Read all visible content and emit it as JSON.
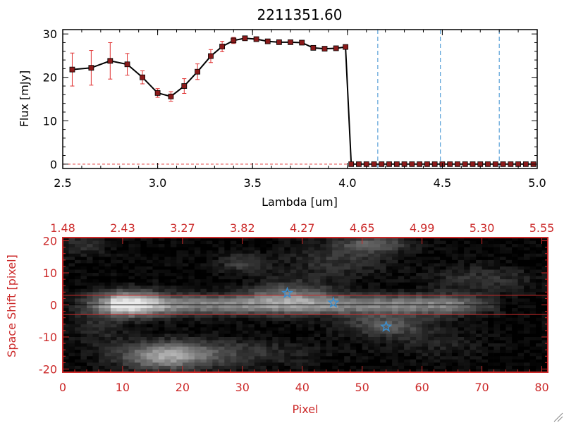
{
  "chart_data": [
    {
      "type": "line",
      "title": "2211351.60",
      "xlabel": "Lambda [um]",
      "ylabel": "Flux [mJy]",
      "xlim": [
        2.5,
        5.0
      ],
      "ylim": [
        -1,
        31
      ],
      "xticks": [
        "2.5",
        "3.0",
        "3.5",
        "4.0",
        "4.5",
        "5.0"
      ],
      "yticks": [
        "0",
        "10",
        "20",
        "30"
      ],
      "grid": false,
      "colors": {
        "line": "#000000",
        "marker": "#8b1a1a",
        "errorbar": "#e03030",
        "vline": "#3a8fd0",
        "zeroline": "#e03030"
      },
      "series": [
        {
          "x": [
            2.55,
            2.65,
            2.75,
            2.84,
            2.92,
            3.0,
            3.07,
            3.14,
            3.21,
            3.28,
            3.34,
            3.4,
            3.46,
            3.52,
            3.58,
            3.64,
            3.7,
            3.76,
            3.82,
            3.88,
            3.94,
            3.99,
            4.02,
            4.06,
            4.1,
            4.14,
            4.18,
            4.22,
            4.26,
            4.3,
            4.34,
            4.38,
            4.42,
            4.46,
            4.5,
            4.54,
            4.58,
            4.62,
            4.66,
            4.7,
            4.74,
            4.78,
            4.82,
            4.86,
            4.9,
            4.94,
            4.98
          ],
          "y": [
            21.8,
            22.2,
            23.8,
            23.0,
            20.0,
            16.4,
            15.6,
            18.0,
            21.3,
            24.9,
            27.1,
            28.5,
            29.0,
            28.8,
            28.3,
            28.1,
            28.1,
            28.0,
            26.8,
            26.6,
            26.7,
            27.0,
            0,
            0,
            0,
            0,
            0,
            0,
            0,
            0,
            0,
            0,
            0,
            0,
            0,
            0,
            0,
            0,
            0,
            0,
            0,
            0,
            0,
            0,
            0,
            0,
            0
          ],
          "yerr": [
            3.8,
            4.0,
            4.2,
            2.5,
            1.5,
            1.0,
            1.1,
            1.7,
            1.8,
            1.5,
            1.2,
            0.7,
            0.5,
            0.4,
            0.4,
            0.4,
            0.4,
            0.5,
            0.4,
            0.4,
            0.3,
            0.4,
            0,
            0,
            0,
            0,
            0,
            0,
            0,
            0,
            0,
            0,
            0,
            0,
            0,
            0,
            0,
            0,
            0,
            0,
            0,
            0,
            0,
            0,
            0,
            0,
            0
          ]
        }
      ],
      "vlines": [
        4.16,
        4.49,
        4.8
      ]
    },
    {
      "type": "heatmap",
      "xlabel": "Pixel",
      "ylabel": "Space Shift [pixel]",
      "xlim": [
        0,
        81
      ],
      "ylim": [
        -21,
        21
      ],
      "xticks": [
        "0",
        "10",
        "20",
        "30",
        "40",
        "50",
        "60",
        "70",
        "80"
      ],
      "yticks": [
        "-20",
        "-10",
        "0",
        "10",
        "20"
      ],
      "top_axis_ticks": [
        "1.48",
        "2.43",
        "3.27",
        "3.82",
        "4.27",
        "4.65",
        "4.99",
        "5.30",
        "5.55"
      ],
      "hlines": [
        -3,
        3
      ],
      "stars": [
        {
          "x": 37.5,
          "y": 3.7
        },
        {
          "x": 45.2,
          "y": 0.7
        },
        {
          "x": 54,
          "y": -6.8
        }
      ],
      "colors": {
        "axis": "#cc2a2a",
        "star": "#3a8fd0"
      }
    }
  ]
}
